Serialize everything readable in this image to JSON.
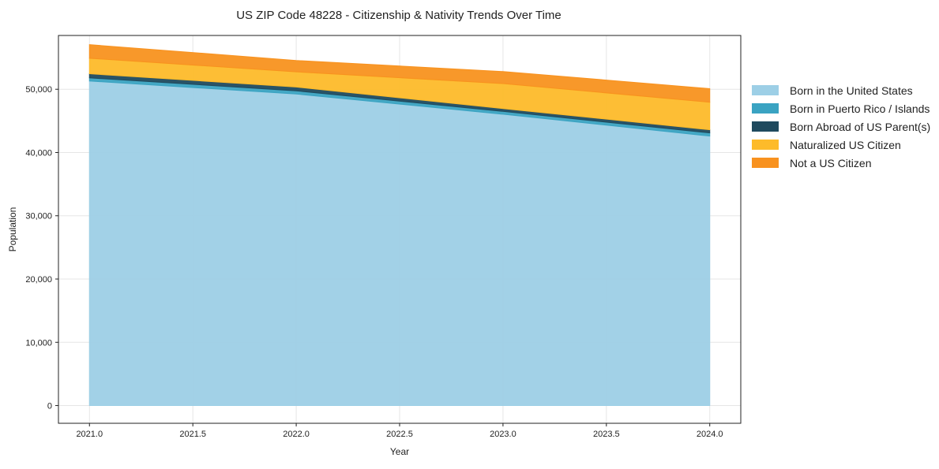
{
  "chart_data": {
    "type": "area",
    "stacked": true,
    "title": "US ZIP Code 48228 - Citizenship & Nativity Trends Over Time",
    "xlabel": "Year",
    "ylabel": "Population",
    "x": [
      2021,
      2022,
      2023,
      2024
    ],
    "xlim": [
      2020.85,
      2024.15
    ],
    "ylim": [
      -2800,
      58500
    ],
    "xticks": [
      2021.0,
      2021.5,
      2022.0,
      2022.5,
      2023.0,
      2023.5,
      2024.0
    ],
    "xtick_labels": [
      "2021.0",
      "2021.5",
      "2022.0",
      "2022.5",
      "2023.0",
      "2023.5",
      "2024.0"
    ],
    "yticks": [
      0,
      10000,
      20000,
      30000,
      40000,
      50000
    ],
    "ytick_labels": [
      "0",
      "10,000",
      "20,000",
      "30,000",
      "40,000",
      "50,000"
    ],
    "grid": true,
    "legend_position": "right",
    "series": [
      {
        "name": "Born in the United States",
        "color": "#9dcfe6",
        "values": [
          51300,
          49250,
          46050,
          42600
        ]
      },
      {
        "name": "Born in Puerto Rico / Islands",
        "color": "#3aa3c2",
        "values": [
          500,
          500,
          450,
          500
        ]
      },
      {
        "name": "Born Abroad of US Parent(s)",
        "color": "#1f4a5e",
        "values": [
          650,
          600,
          450,
          500
        ]
      },
      {
        "name": "Naturalized US Citizen",
        "color": "#fdbb2a",
        "values": [
          2450,
          2400,
          3950,
          4350
        ]
      },
      {
        "name": "Not a US Citizen",
        "color": "#f8921f",
        "values": [
          2150,
          1800,
          1900,
          2150
        ]
      }
    ]
  }
}
